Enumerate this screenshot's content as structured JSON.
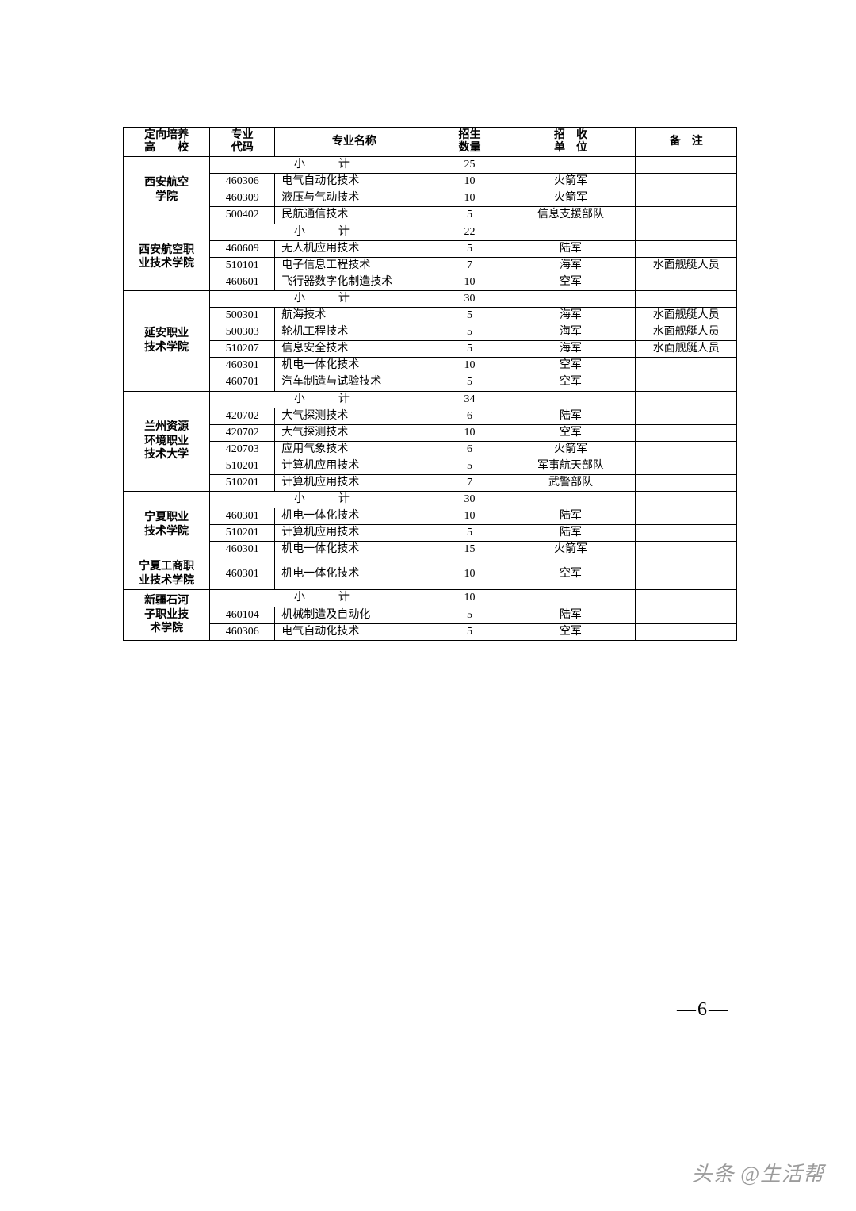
{
  "colors": {
    "page_bg": "#ffffff",
    "border": "#000000",
    "text": "#000000",
    "watermark": "#8a8a8a"
  },
  "typography": {
    "body_font": "SimSun",
    "cell_fontsize_pt": 10.5,
    "header_fontsize_pt": 10.5,
    "pagenum_fontsize_pt": 18,
    "watermark_fontsize_pt": 20
  },
  "table": {
    "type": "table",
    "col_widths_pct": [
      12,
      9,
      22,
      10,
      18,
      14
    ],
    "border_color": "#000000",
    "background_color": "#ffffff",
    "header": {
      "school": "定向培养\n高　　校",
      "code": "专业\n代码",
      "major": "专业名称",
      "qty": "招生\n数量",
      "unit": "招　收\n单　位",
      "note": "备　注"
    },
    "schools": [
      {
        "name": "西安航空\n学院",
        "subtotal_label": "小　计",
        "subtotal_qty": "25",
        "rows": [
          {
            "code": "460306",
            "major": "电气自动化技术",
            "qty": "10",
            "unit": "火箭军",
            "note": ""
          },
          {
            "code": "460309",
            "major": "液压与气动技术",
            "qty": "10",
            "unit": "火箭军",
            "note": ""
          },
          {
            "code": "500402",
            "major": "民航通信技术",
            "qty": "5",
            "unit": "信息支援部队",
            "note": ""
          }
        ]
      },
      {
        "name": "西安航空职\n业技术学院",
        "subtotal_label": "小　计",
        "subtotal_qty": "22",
        "rows": [
          {
            "code": "460609",
            "major": "无人机应用技术",
            "qty": "5",
            "unit": "陆军",
            "note": ""
          },
          {
            "code": "510101",
            "major": "电子信息工程技术",
            "qty": "7",
            "unit": "海军",
            "note": "水面舰艇人员"
          },
          {
            "code": "460601",
            "major": "飞行器数字化制造技术",
            "qty": "10",
            "unit": "空军",
            "note": ""
          }
        ]
      },
      {
        "name": "延安职业\n技术学院",
        "subtotal_label": "小　计",
        "subtotal_qty": "30",
        "rows": [
          {
            "code": "500301",
            "major": "航海技术",
            "qty": "5",
            "unit": "海军",
            "note": "水面舰艇人员"
          },
          {
            "code": "500303",
            "major": "轮机工程技术",
            "qty": "5",
            "unit": "海军",
            "note": "水面舰艇人员"
          },
          {
            "code": "510207",
            "major": "信息安全技术",
            "qty": "5",
            "unit": "海军",
            "note": "水面舰艇人员"
          },
          {
            "code": "460301",
            "major": "机电一体化技术",
            "qty": "10",
            "unit": "空军",
            "note": ""
          },
          {
            "code": "460701",
            "major": "汽车制造与试验技术",
            "qty": "5",
            "unit": "空军",
            "note": ""
          }
        ]
      },
      {
        "name": "兰州资源\n环境职业\n技术大学",
        "subtotal_label": "小　计",
        "subtotal_qty": "34",
        "rows": [
          {
            "code": "420702",
            "major": "大气探测技术",
            "qty": "6",
            "unit": "陆军",
            "note": ""
          },
          {
            "code": "420702",
            "major": "大气探测技术",
            "qty": "10",
            "unit": "空军",
            "note": ""
          },
          {
            "code": "420703",
            "major": "应用气象技术",
            "qty": "6",
            "unit": "火箭军",
            "note": ""
          },
          {
            "code": "510201",
            "major": "计算机应用技术",
            "qty": "5",
            "unit": "军事航天部队",
            "note": ""
          },
          {
            "code": "510201",
            "major": "计算机应用技术",
            "qty": "7",
            "unit": "武警部队",
            "note": ""
          }
        ]
      },
      {
        "name": "宁夏职业\n技术学院",
        "subtotal_label": "小　计",
        "subtotal_qty": "30",
        "rows": [
          {
            "code": "460301",
            "major": "机电一体化技术",
            "qty": "10",
            "unit": "陆军",
            "note": ""
          },
          {
            "code": "510201",
            "major": "计算机应用技术",
            "qty": "5",
            "unit": "陆军",
            "note": ""
          },
          {
            "code": "460301",
            "major": "机电一体化技术",
            "qty": "15",
            "unit": "火箭军",
            "note": ""
          }
        ]
      },
      {
        "name": "宁夏工商职\n业技术学院",
        "subtotal_label": null,
        "subtotal_qty": null,
        "rows": [
          {
            "code": "460301",
            "major": "机电一体化技术",
            "qty": "10",
            "unit": "空军",
            "note": ""
          }
        ]
      },
      {
        "name": "新疆石河\n子职业技\n术学院",
        "subtotal_label": "小　计",
        "subtotal_qty": "10",
        "rows": [
          {
            "code": "460104",
            "major": "机械制造及自动化",
            "qty": "5",
            "unit": "陆军",
            "note": ""
          },
          {
            "code": "460306",
            "major": "电气自动化技术",
            "qty": "5",
            "unit": "空军",
            "note": ""
          }
        ]
      }
    ]
  },
  "page_number": "—6—",
  "watermark": "头条 @生活帮"
}
